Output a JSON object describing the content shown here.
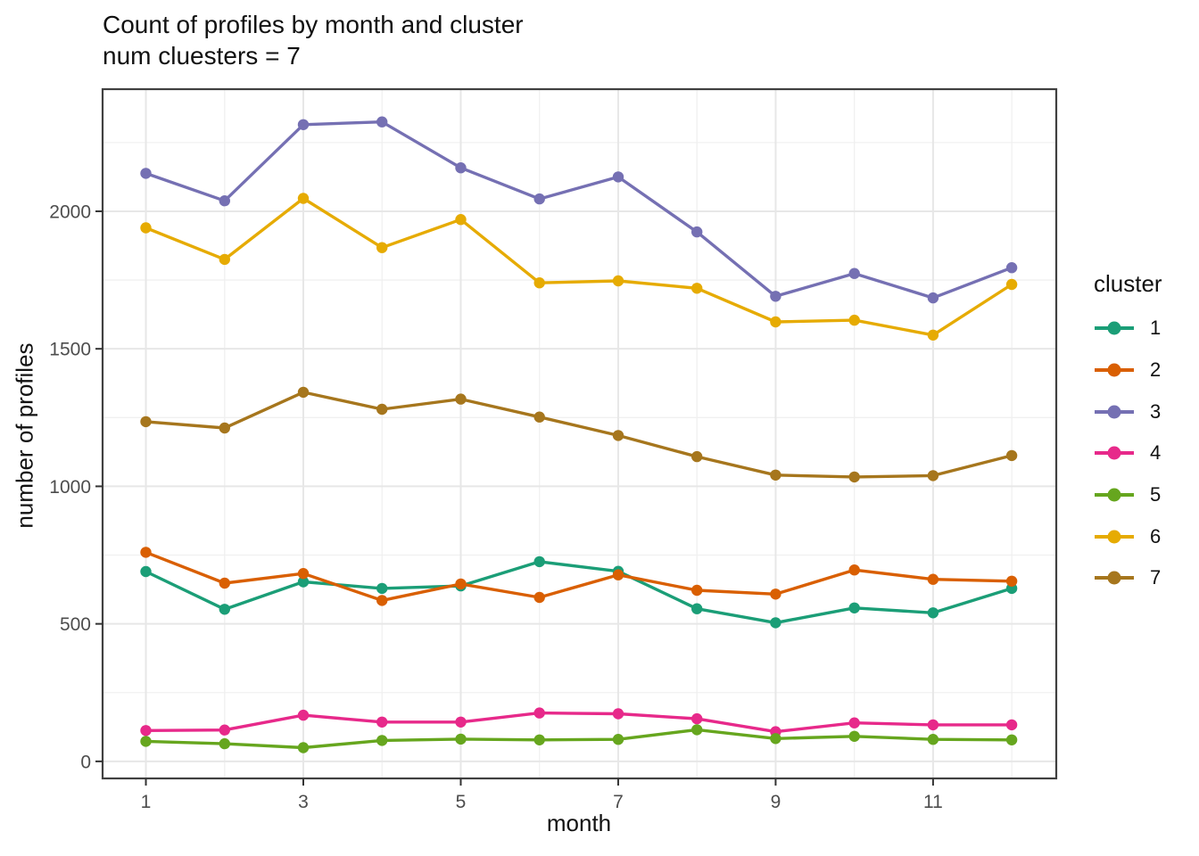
{
  "chart_data": {
    "type": "line",
    "title": "Count of profiles by month and cluster",
    "subtitle": "num cluesters = 7",
    "xlabel": "month",
    "ylabel": "number of profiles",
    "legend_title": "cluster",
    "legend_position": "right",
    "grid": true,
    "x": [
      1,
      2,
      3,
      4,
      5,
      6,
      7,
      8,
      9,
      10,
      11,
      12
    ],
    "x_ticks": [
      1,
      3,
      5,
      7,
      9,
      11
    ],
    "x_minor": [
      2,
      4,
      6,
      8,
      10,
      12
    ],
    "y_ticks": [
      0,
      500,
      1000,
      1500,
      2000
    ],
    "y_minor": [
      250,
      750,
      1250,
      1750,
      2250
    ],
    "xlim": [
      0.45,
      12.565
    ],
    "ylim": [
      -62,
      2444
    ],
    "series": [
      {
        "name": "1",
        "color": "#1B9E77",
        "values": [
          690,
          553,
          653,
          629,
          638,
          726,
          691,
          555,
          504,
          558,
          540,
          629
        ]
      },
      {
        "name": "2",
        "color": "#D95F02",
        "values": [
          760,
          648,
          683,
          585,
          645,
          596,
          678,
          622,
          608,
          696,
          662,
          655
        ]
      },
      {
        "name": "3",
        "color": "#7570B3",
        "values": [
          2138,
          2038,
          2315,
          2325,
          2158,
          2045,
          2125,
          1925,
          1691,
          1774,
          1685,
          1795
        ]
      },
      {
        "name": "4",
        "color": "#E7298A",
        "values": [
          112,
          114,
          168,
          143,
          143,
          176,
          173,
          155,
          108,
          140,
          133,
          133
        ]
      },
      {
        "name": "5",
        "color": "#66A61E",
        "values": [
          73,
          64,
          50,
          76,
          81,
          78,
          80,
          115,
          83,
          91,
          80,
          78
        ]
      },
      {
        "name": "6",
        "color": "#E6AB02",
        "values": [
          1940,
          1825,
          2047,
          1868,
          1970,
          1740,
          1747,
          1720,
          1598,
          1604,
          1550,
          1734
        ]
      },
      {
        "name": "7",
        "color": "#A6761D",
        "values": [
          1235,
          1212,
          1342,
          1280,
          1317,
          1252,
          1185,
          1108,
          1041,
          1034,
          1039,
          1112
        ]
      }
    ]
  }
}
